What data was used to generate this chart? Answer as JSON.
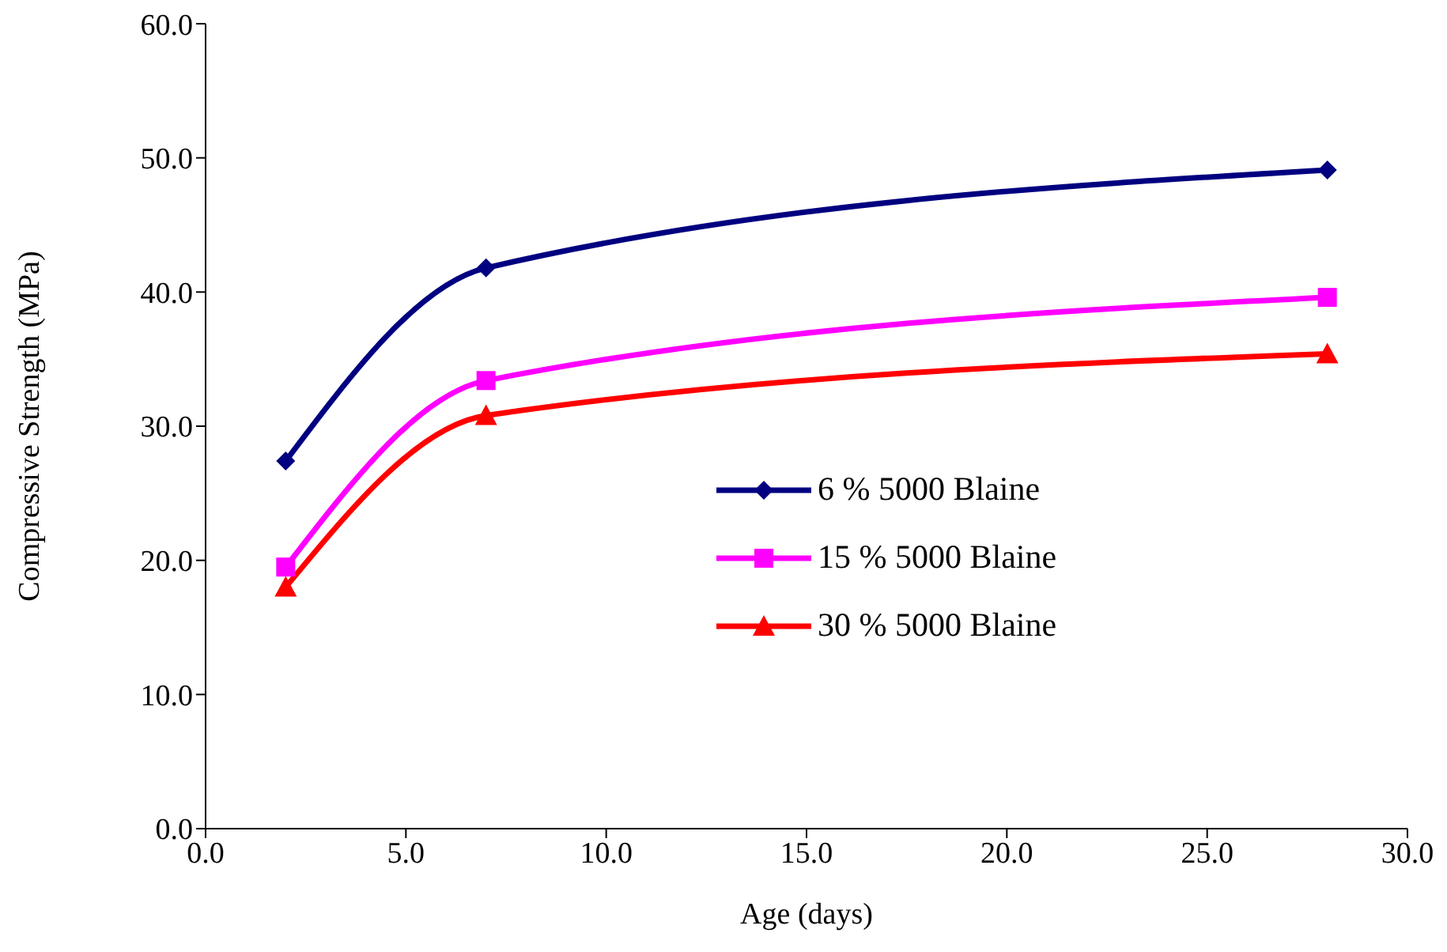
{
  "chart_data": {
    "type": "line",
    "xlabel": "Age (days)",
    "ylabel": "Compressive Strength (MPa)",
    "xlim": [
      0,
      30
    ],
    "xticks": [
      {
        "value": 0,
        "label": "0.0"
      },
      {
        "value": 5,
        "label": "5.0"
      },
      {
        "value": 10,
        "label": "10.0"
      },
      {
        "value": 15,
        "label": "15.0"
      },
      {
        "value": 20,
        "label": "20.0"
      },
      {
        "value": 25,
        "label": "25.0"
      },
      {
        "value": 30,
        "label": "30.0"
      }
    ],
    "ylim": [
      0,
      60
    ],
    "yticks": [
      {
        "value": 0,
        "label": "0.0"
      },
      {
        "value": 10,
        "label": "10.0"
      },
      {
        "value": 20,
        "label": "20.0"
      },
      {
        "value": 30,
        "label": "30.0"
      },
      {
        "value": 40,
        "label": "40.0"
      },
      {
        "value": 50,
        "label": "50.0"
      },
      {
        "value": 60,
        "label": "60.0"
      }
    ],
    "x": [
      2,
      7,
      28
    ],
    "legend": "center",
    "grid": false,
    "line_style": "solid",
    "series": [
      {
        "name": "6 % 5000 Blaine",
        "color": "#000080",
        "marker": "diamond",
        "values": [
          27.4,
          41.8,
          49.1
        ]
      },
      {
        "name": "15 % 5000 Blaine",
        "color": "#ff00ff",
        "marker": "square",
        "values": [
          19.5,
          33.4,
          39.6
        ]
      },
      {
        "name": "30 % 5000 Blaine",
        "color": "#ff0000",
        "marker": "triangle",
        "values": [
          18.0,
          30.8,
          35.4
        ]
      }
    ]
  }
}
